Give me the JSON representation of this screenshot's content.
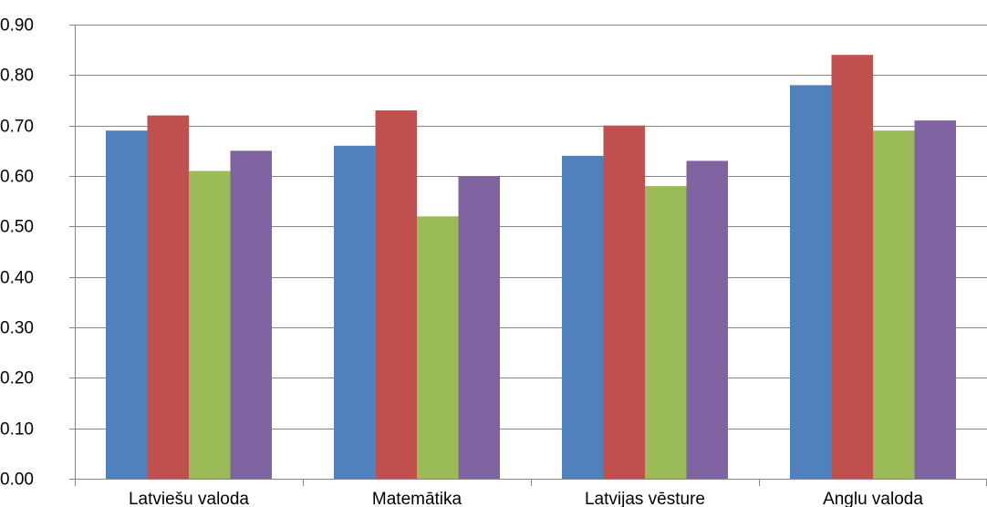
{
  "chart_data": {
    "type": "bar",
    "categories": [
      "Latviešu valoda",
      "Matemātika",
      "Latvijas vēsture",
      "Anglu valoda"
    ],
    "series": [
      {
        "color": "#4F81BD",
        "values": [
          0.69,
          0.66,
          0.64,
          0.78
        ]
      },
      {
        "color": "#C0504D",
        "values": [
          0.72,
          0.73,
          0.7,
          0.84
        ]
      },
      {
        "color": "#9BBB59",
        "values": [
          0.61,
          0.52,
          0.58,
          0.69
        ]
      },
      {
        "color": "#8064A2",
        "values": [
          0.65,
          0.6,
          0.63,
          0.71
        ]
      }
    ],
    "ylim": [
      0,
      0.9
    ],
    "yticks": [
      "0.00",
      "0.10",
      "0.20",
      "0.30",
      "0.40",
      "0.50",
      "0.60",
      "0.70",
      "0.80",
      "0.90"
    ],
    "grid": true,
    "title": "",
    "xlabel": "",
    "ylabel": ""
  }
}
